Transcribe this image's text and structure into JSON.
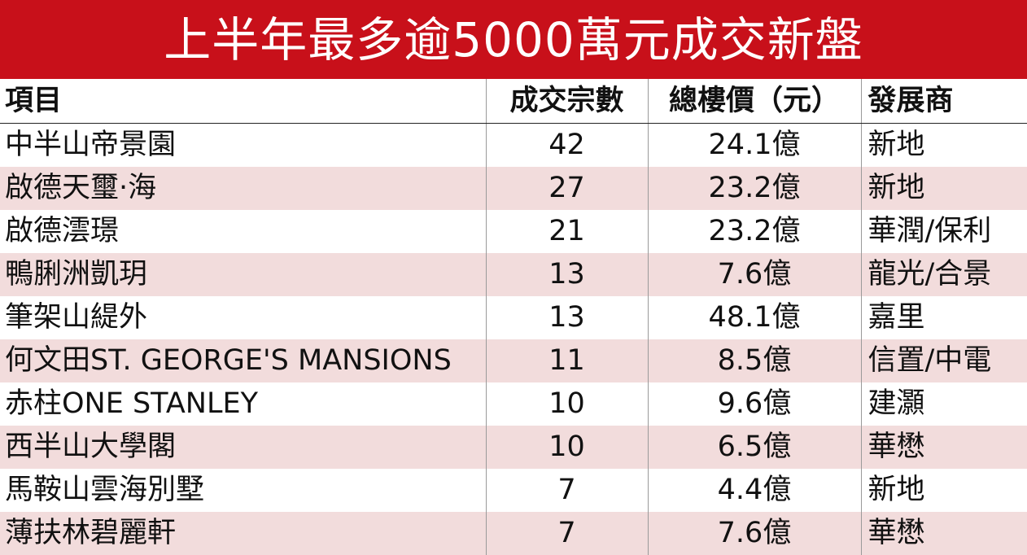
{
  "title": "上半年最多逾5000萬元成交新盤",
  "headers": {
    "project": "項目",
    "transactions": "成交宗數",
    "total_value": "總樓價（元）",
    "developer": "發展商"
  },
  "colors": {
    "title_bg": "#c8101a",
    "stripe": "#f2dcdc"
  },
  "rows": [
    {
      "project": "中半山帝景園",
      "transactions": "42",
      "total_value": "24.1億",
      "developer": "新地"
    },
    {
      "project": "啟德天璽·海",
      "transactions": "27",
      "total_value": "23.2億",
      "developer": "新地"
    },
    {
      "project": "啟德澐璟",
      "transactions": "21",
      "total_value": "23.2億",
      "developer": "華潤/保利"
    },
    {
      "project": "鴨脷洲凱玥",
      "transactions": "13",
      "total_value": "7.6億",
      "developer": "龍光/合景"
    },
    {
      "project": "筆架山緹外",
      "transactions": "13",
      "total_value": "48.1億",
      "developer": "嘉里"
    },
    {
      "project": "何文田ST. GEORGE'S MANSIONS",
      "transactions": "11",
      "total_value": "8.5億",
      "developer": "信置/中電"
    },
    {
      "project": "赤柱ONE STANLEY",
      "transactions": "10",
      "total_value": "9.6億",
      "developer": "建灝"
    },
    {
      "project": "西半山大學閣",
      "transactions": "10",
      "total_value": "6.5億",
      "developer": "華懋"
    },
    {
      "project": "馬鞍山雲海別墅",
      "transactions": "7",
      "total_value": "4.4億",
      "developer": "新地"
    },
    {
      "project": "薄扶林碧麗軒",
      "transactions": "7",
      "total_value": "7.6億",
      "developer": "華懋"
    }
  ]
}
